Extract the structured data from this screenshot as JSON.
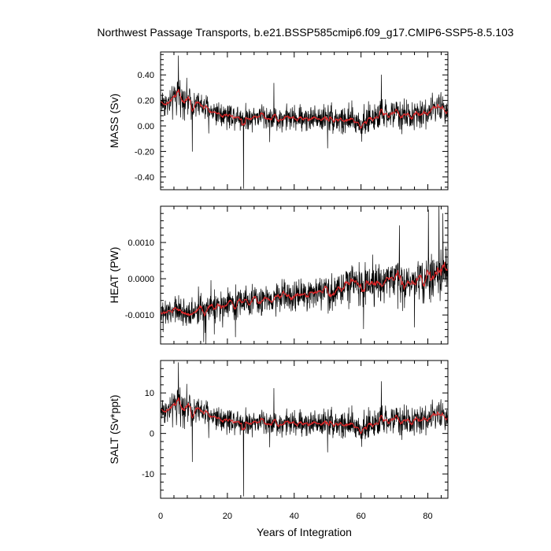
{
  "title": "Northwest Passage Transports, b.e21.BSSP585cmip6.f09_g17.CMIP6-SSP5-8.5.103",
  "colors": {
    "raw_line": "#000000",
    "smooth_line": "#e0282a",
    "frame": "#000000",
    "background": "#ffffff"
  },
  "chart_data": [
    {
      "type": "line",
      "panel": "mass",
      "title": "",
      "ylabel": "MASS (Sv)",
      "xlabel": "",
      "xlim": [
        0,
        86
      ],
      "ylim": [
        -0.5,
        0.58
      ],
      "yticks": [
        -0.4,
        -0.2,
        0.0,
        0.2,
        0.4
      ],
      "yticklabels": [
        "-0.40",
        "-0.20",
        "0.00",
        "0.20",
        "0.40"
      ],
      "series": [
        {
          "role": "monthly",
          "color": "#000000",
          "x": [],
          "y": []
        },
        {
          "role": "running-mean",
          "color": "#e0282a",
          "x": [],
          "y": []
        }
      ],
      "anchors": {
        "x": [
          0,
          3,
          5,
          7,
          10,
          15,
          20,
          25,
          30,
          35,
          40,
          45,
          50,
          55,
          60,
          65,
          70,
          75,
          80,
          83,
          85
        ],
        "smooth": [
          0.19,
          0.17,
          0.25,
          0.22,
          0.18,
          0.12,
          0.09,
          0.07,
          0.08,
          0.06,
          0.06,
          0.06,
          0.07,
          0.04,
          0.03,
          0.07,
          0.1,
          0.08,
          0.1,
          0.16,
          0.15
        ],
        "noise": [
          0.08,
          0.08,
          0.09,
          0.09,
          0.08,
          0.08,
          0.07,
          0.07,
          0.07,
          0.07,
          0.07,
          0.07,
          0.08,
          0.09,
          0.09,
          0.08,
          0.08,
          0.08,
          0.08,
          0.08,
          0.08
        ]
      }
    },
    {
      "type": "line",
      "panel": "heat",
      "title": "",
      "ylabel": "HEAT (PW)",
      "xlabel": "",
      "xlim": [
        0,
        86
      ],
      "ylim": [
        -0.0018,
        0.002
      ],
      "yticks": [
        -0.001,
        0.0,
        0.001
      ],
      "yticklabels": [
        "-0.0010",
        "0.0000",
        "0.0010"
      ],
      "series": [
        {
          "role": "monthly",
          "color": "#000000",
          "x": [],
          "y": []
        },
        {
          "role": "running-mean",
          "color": "#e0282a",
          "x": [],
          "y": []
        }
      ],
      "anchors": {
        "x": [
          0,
          5,
          10,
          15,
          20,
          25,
          30,
          35,
          40,
          45,
          50,
          55,
          60,
          65,
          70,
          75,
          80,
          83,
          85
        ],
        "smooth": [
          -0.001,
          -0.0009,
          -0.00095,
          -0.0008,
          -0.0007,
          -0.0006,
          -0.0006,
          -0.0005,
          -0.00045,
          -0.0004,
          -0.00035,
          -0.0002,
          -0.0001,
          -0.00015,
          -0.0001,
          0.0,
          5e-05,
          0.0001,
          0.0002
        ],
        "noise": [
          0.0003,
          0.0003,
          0.0003,
          0.0003,
          0.0003,
          0.0003,
          0.0003,
          0.0003,
          0.0003,
          0.0003,
          0.00035,
          0.0004,
          0.0004,
          0.0004,
          0.0004,
          0.0004,
          0.00045,
          0.0005,
          0.0005
        ]
      }
    },
    {
      "type": "line",
      "panel": "salt",
      "title": "",
      "ylabel": "SALT (Sv*ppt)",
      "xlabel": "Years of Integration",
      "xlim": [
        0,
        86
      ],
      "ylim": [
        -16,
        18
      ],
      "yticks": [
        -10,
        0,
        10
      ],
      "yticklabels": [
        "-10",
        "0",
        "10"
      ],
      "xticks": [
        0,
        20,
        40,
        60,
        80
      ],
      "xticklabels": [
        "0",
        "20",
        "40",
        "60",
        "80"
      ],
      "series": [
        {
          "role": "monthly",
          "color": "#000000",
          "x": [],
          "y": []
        },
        {
          "role": "running-mean",
          "color": "#e0282a",
          "x": [],
          "y": []
        }
      ],
      "anchors": {
        "x": [
          0,
          3,
          5,
          7,
          10,
          15,
          20,
          25,
          30,
          35,
          40,
          45,
          50,
          55,
          60,
          65,
          70,
          75,
          80,
          83,
          85
        ],
        "smooth": [
          6,
          5.5,
          7.5,
          7,
          6,
          4.5,
          3.5,
          3,
          3,
          2.5,
          2.5,
          2.5,
          3,
          2,
          1.5,
          2.5,
          3.5,
          3,
          3.5,
          5,
          5
        ],
        "noise": [
          2.5,
          2.5,
          3,
          3,
          2.5,
          2.5,
          2.2,
          2.2,
          2.2,
          2.2,
          2.2,
          2.2,
          2.5,
          2.8,
          2.8,
          2.5,
          2.5,
          2.5,
          2.5,
          2.5,
          2.5
        ]
      }
    }
  ]
}
